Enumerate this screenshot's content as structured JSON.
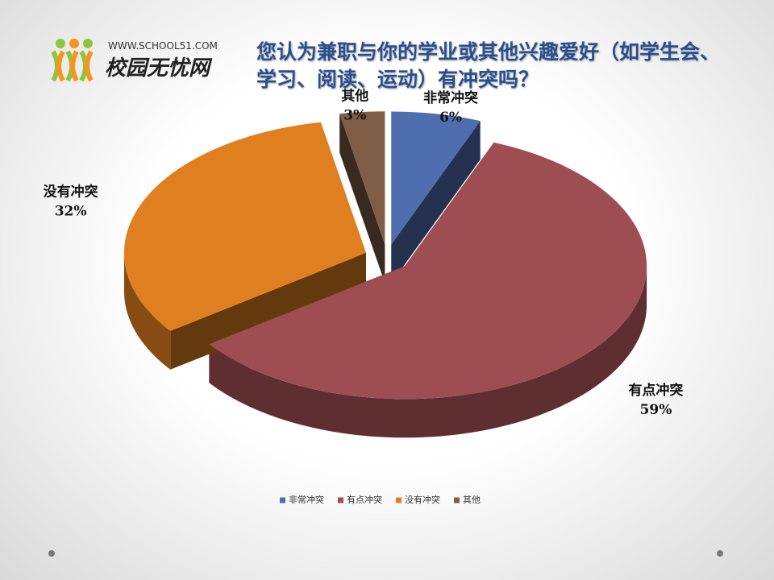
{
  "logo": {
    "url": "WWW.SCHOOL51.COM",
    "name": "校园无忧网"
  },
  "chart_data": {
    "type": "pie",
    "title": "您认为兼职与你的学业或其他兴趣爱好（如学生会、学习、阅读、运动）有冲突吗？",
    "categories": [
      "非常冲突",
      "有点冲突",
      "没有冲突",
      "其他"
    ],
    "values": [
      6,
      59,
      32,
      3
    ],
    "value_labels": [
      "6%",
      "59%",
      "32%",
      "3%"
    ],
    "colors": [
      "#4f6eb0",
      "#9e4d52",
      "#e07f20",
      "#7f5d46"
    ],
    "legend": "bottom"
  }
}
